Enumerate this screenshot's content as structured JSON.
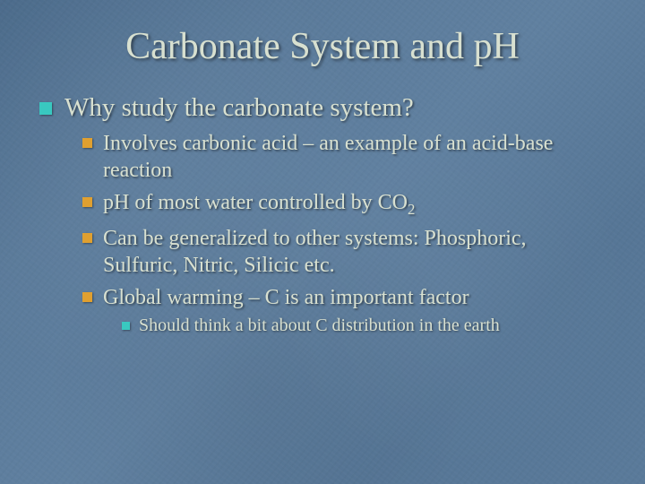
{
  "colors": {
    "background_base": "#5a7a9a",
    "text": "#d8e0d0",
    "bullet_lvl1": "#39c8c0",
    "bullet_lvl2": "#e0a030",
    "bullet_lvl3": "#39c8c0",
    "shadow": "rgba(0,0,0,0.5)"
  },
  "typography": {
    "family": "Georgia, Times New Roman, serif",
    "title_size_pt": 32,
    "lvl1_size_pt": 22,
    "lvl2_size_pt": 18,
    "lvl3_size_pt": 15
  },
  "title": "Carbonate System and pH",
  "b1": "Why study the carbonate system?",
  "b1_1": "Involves carbonic acid – an example of an acid-base reaction",
  "b1_2a": "pH of most water controlled by CO",
  "b1_2_sub": "2",
  "b1_3": "Can be generalized to other systems: Phosphoric, Sulfuric, Nitric, Silicic etc.",
  "b1_4": "Global warming – C is an important factor",
  "b1_4_1": "Should think a bit about C distribution in the earth"
}
